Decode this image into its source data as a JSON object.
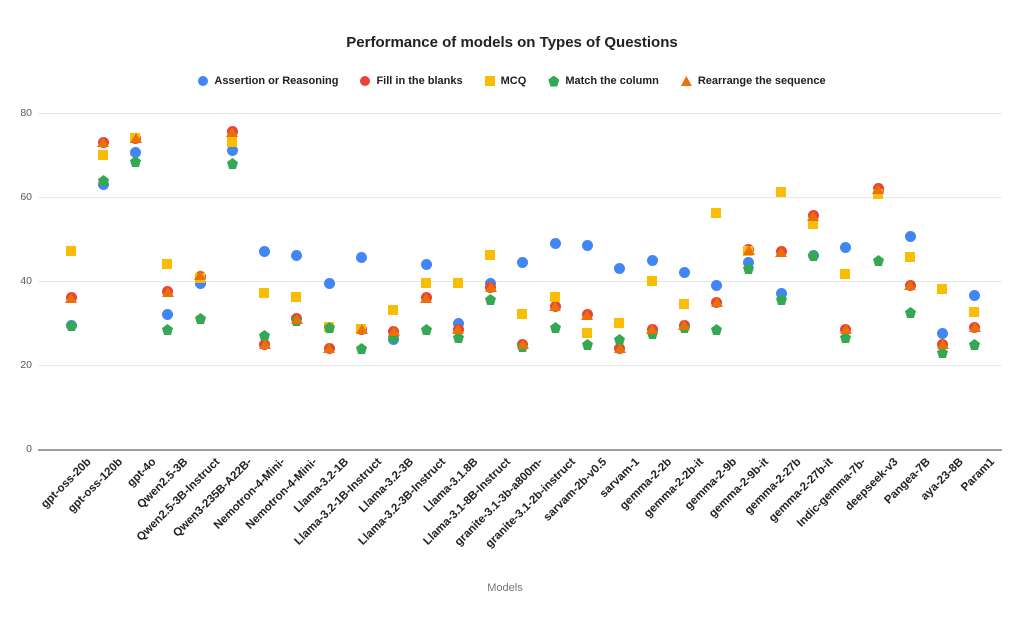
{
  "title": "Performance of models on Types of Questions",
  "x_axis_title": "Models",
  "chart_data": {
    "type": "scatter",
    "title": "Performance of models on Types of Questions",
    "xlabel": "Models",
    "ylabel": "",
    "ylim": [
      0,
      85
    ],
    "yticks": [
      0,
      20,
      40,
      60,
      80
    ],
    "grid": true,
    "legend_position": "top",
    "categories": [
      "gpt-oss-20b",
      "gpt-oss-120b",
      "gpt-4o",
      "Qwen2.5-3B",
      "Qwen2.5-3B-Instruct",
      "Qwen3-235B-A22B-",
      "Nemotron-4-Mini-",
      "Nemotron-4-Mini-",
      "Llama-3.2-1B",
      "Llama-3.2-1B-Instruct",
      "Llama-3.2-3B",
      "Llama-3.2-3B-Instruct",
      "Llama-3.1.8B",
      "Llama-3.1-8B-Instruct",
      "granite-3.1-3b-a800m-",
      "granite-3.1-2b-instruct",
      "sarvam-2b-v0.5",
      "sarvam-1",
      "gemma-2-2b",
      "gemma-2-2b-it",
      "gemma-2-9b",
      "gemma-2-9b-it",
      "gemma-2-27b",
      "gemma-2-27b-it",
      "Indic-gemma-7b-",
      "deepseek-v3",
      "Pangea-7B",
      "aya-23-8B",
      "Param1"
    ],
    "series": [
      {
        "name": "Assertion or Reasoning",
        "color": "#4285F4",
        "marker": "circle",
        "values": [
          29.5,
          63,
          70.5,
          32,
          39.5,
          71,
          47,
          46,
          39.5,
          45.5,
          26,
          44,
          30,
          39.5,
          44.5,
          49,
          48.5,
          43,
          45,
          42,
          39,
          44.5,
          37,
          46,
          48,
          61.5,
          50.5,
          27.5,
          36.5
        ]
      },
      {
        "name": "Fill in the blanks",
        "color": "#EA4335",
        "marker": "circle",
        "occluded_behind_rearrange_markers": true,
        "values": [
          36,
          73,
          74,
          37.5,
          41,
          75.5,
          25,
          31,
          24,
          28.5,
          28,
          36,
          28.5,
          38.5,
          25,
          34,
          32,
          24,
          28.5,
          29.5,
          35,
          47.5,
          47,
          55.5,
          28.5,
          62,
          39,
          25,
          29
        ]
      },
      {
        "name": "MCQ",
        "color": "#FBBC04",
        "marker": "square",
        "values": [
          47,
          70,
          74,
          44,
          40.5,
          73,
          37,
          36,
          29,
          28.5,
          33,
          39.5,
          39.5,
          46,
          32,
          36,
          27.5,
          30,
          40,
          34.5,
          56,
          47,
          61,
          53.5,
          41.5,
          60.5,
          45.5,
          38,
          32.5
        ]
      },
      {
        "name": "Match the column",
        "color": "#34A853",
        "marker": "pentagon",
        "values": [
          29.5,
          64,
          68.5,
          28.5,
          31,
          68,
          27,
          30.5,
          29,
          24,
          26.5,
          28.5,
          26.5,
          35.5,
          24.5,
          29,
          25,
          26,
          27.5,
          29,
          28.5,
          43,
          35.5,
          46,
          26.5,
          45,
          32.5,
          23,
          25
        ]
      },
      {
        "name": "Rearrange the sequence",
        "color": "#E8710A",
        "marker": "triangle",
        "values": [
          36,
          73,
          74,
          37.5,
          41.5,
          75.5,
          25,
          31,
          24,
          28.5,
          28,
          36,
          28.5,
          38.5,
          25,
          34,
          32,
          24,
          28.5,
          29.5,
          35,
          47.5,
          47,
          55.5,
          28.5,
          62,
          39,
          25,
          29
        ]
      }
    ]
  }
}
